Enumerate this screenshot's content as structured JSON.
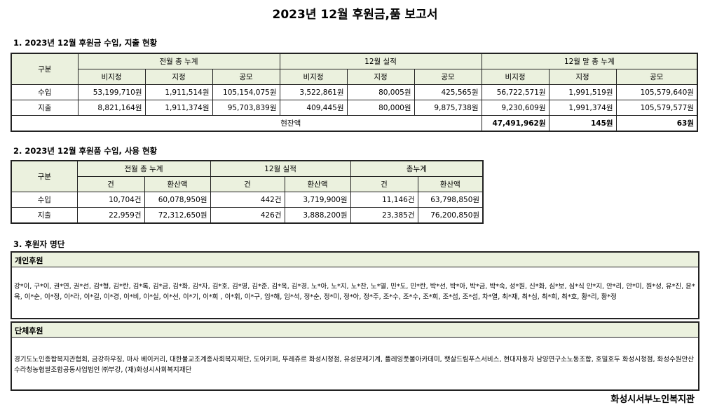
{
  "title": "2023년 12월 후원금,품 보고서",
  "section1": {
    "heading": "1. 2023년 12월 후원금 수입, 지출 현황",
    "col_gubun": "구분",
    "groups": [
      "전월 총 누계",
      "12월 실적",
      "12월 말 총 누계"
    ],
    "subheads": [
      "비지정",
      "지정",
      "공모"
    ],
    "rows": [
      {
        "label": "수입",
        "values": [
          "53,199,710원",
          "1,911,514원",
          "105,154,075원",
          "3,522,861원",
          "80,005원",
          "425,565원",
          "56,722,571원",
          "1,991,519원",
          "105,579,640원"
        ]
      },
      {
        "label": "지출",
        "values": [
          "8,821,164원",
          "1,911,374원",
          "95,703,839원",
          "409,445원",
          "80,000원",
          "9,875,738원",
          "9,230,609원",
          "1,991,374원",
          "105,579,577원"
        ]
      }
    ],
    "balance_label": "현잔액",
    "balance_values": [
      "47,491,962원",
      "145원",
      "63원"
    ]
  },
  "section2": {
    "heading": "2. 2023년 12월 후원품 수입, 사용 현황",
    "col_gubun": "구분",
    "groups": [
      "전월 총 누계",
      "12월 실적",
      "총누계"
    ],
    "subheads": [
      "건",
      "환산액"
    ],
    "rows": [
      {
        "label": "수입",
        "values": [
          "10,704건",
          "60,078,950원",
          "442건",
          "3,719,900원",
          "11,146건",
          "63,798,850원"
        ]
      },
      {
        "label": "지출",
        "values": [
          "22,959건",
          "72,312,650원",
          "426건",
          "3,888,200원",
          "23,385건",
          "76,200,850원"
        ]
      }
    ]
  },
  "section3": {
    "heading": "3. 후원자 명단",
    "individual_label": "개인후원",
    "individual_text": "강*이, 구*이, 권*연, 권*선, 김*형, 김*란, 김*록, 김*금, 김*화, 김*자, 김*호, 김*영, 김*준, 김*옥, 김*경, 노*아, 노*지, 노*찬, 노*열, 민*도, 민*란, 박*선, 박*아, 박*금, 박*숙, 성*원, 신*화, 심*보, 심*식 안*지, 안*리, 안*미, 원*성, 유*진, 윤*옥, 이*순, 이*정, 이*라, 이*길, 이*경, 이*비, 이*실, 이*선, 이*기, 이*희 , 이*휘, 이*구, 임*해, 임*석, 정*순, 정*미, 정*아, 정*주, 조*수, 조*수, 조*희, 조*섭, 조*섭, 차*열, 최*재, 최*심, 최*희, 최*호, 황*리, 황*정",
    "group_label": "단체후원",
    "group_text": "경기도노인종합복지관협회, 금강하우징, 마사 베이커리, 대한불교조계종사회복지재단, 도어키퍼, 뚜레쥬르 화성시청점, 유성분체기계, 플레잉풋볼아카데미, 햇살드림푸스서비스, 현대자동차 남양연구소노동조합, 호밀호두 화성시청점, 화성수원안산수라청농협쌀조합공동사업법인 ㈜부강, (재)화성시사회복지재단"
  },
  "footer": {
    "org_name": "화성시서부노인복지관"
  }
}
